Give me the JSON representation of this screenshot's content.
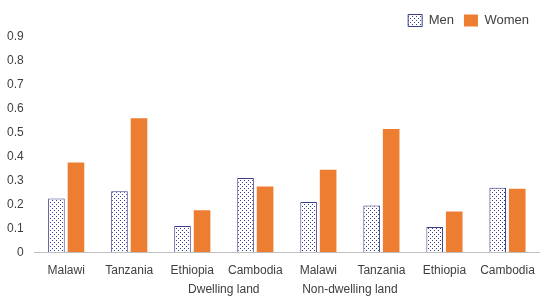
{
  "chart_data": {
    "type": "bar",
    "categories": [
      "Malawi",
      "Tanzania",
      "Ethiopia",
      "Cambodia",
      "Malawi",
      "Tanzania",
      "Ethiopia",
      "Cambodia"
    ],
    "groups": [
      {
        "label": "Dwelling land",
        "count": 4
      },
      {
        "label": "Non-dwelling land",
        "count": 4
      }
    ],
    "series": [
      {
        "name": "Men",
        "color": "#3b3f8c",
        "marker": "dotted",
        "values": [
          0.225,
          0.255,
          0.11,
          0.31,
          0.21,
          0.195,
          0.105,
          0.27
        ]
      },
      {
        "name": "Women",
        "color": "#ed7d31",
        "values": [
          0.375,
          0.56,
          0.175,
          0.275,
          0.345,
          0.515,
          0.17,
          0.265
        ]
      }
    ],
    "ylim": [
      0,
      0.9
    ],
    "yticks": [
      0,
      0.1,
      0.2,
      0.3,
      0.4,
      0.5,
      0.6,
      0.7,
      0.8,
      0.9
    ],
    "grid": false,
    "legend": "top-right"
  }
}
